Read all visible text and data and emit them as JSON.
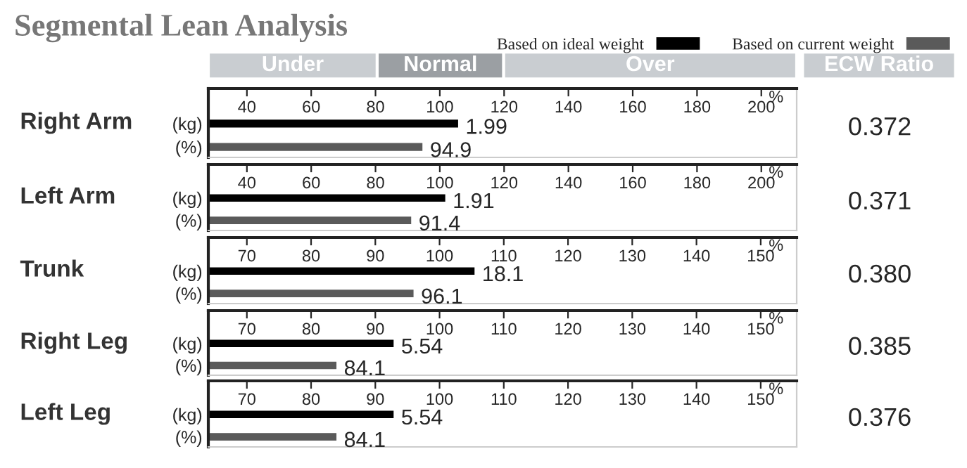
{
  "chart_data": [
    {
      "type": "bar",
      "orientation": "horizontal",
      "title": "Segmental Lean Analysis",
      "ylabel": "Right Arm",
      "xlabel": "%",
      "categories": [
        "(kg)",
        "(%)"
      ],
      "legend": "top right",
      "series": [
        {
          "name": "Based on ideal weight",
          "color": "#000000",
          "values": [
            106,
            null
          ]
        },
        {
          "name": "Based on current weight",
          "color": "#5a5a5a",
          "values": [
            null,
            94.9
          ],
          "value_labels": [
            null,
            "94.9"
          ]
        }
      ],
      "xlim": [
        28,
        211
      ],
      "xticks": [
        40,
        60,
        80,
        100,
        120,
        140,
        160,
        180,
        200
      ],
      "annotations": [
        "Under",
        "Normal",
        "Over",
        "ECW Ratio",
        {
          "text": "1.99",
          "x": 106,
          "y": "(kg)"
        },
        "0.372"
      ]
    },
    {
      "type": "bar",
      "orientation": "horizontal",
      "ylabel": "Left Arm",
      "xlabel": "%",
      "categories": [
        "(kg)",
        "(%)"
      ],
      "series": [
        {
          "color": "#000000",
          "values": [
            102,
            null
          ]
        },
        {
          "color": "#5a5a5a",
          "values": [
            null,
            91.4
          ],
          "value_labels": [
            null,
            "91.4"
          ]
        }
      ],
      "xlim": [
        28,
        211
      ],
      "xticks": [
        40,
        60,
        80,
        100,
        120,
        140,
        160,
        180,
        200
      ],
      "annotations": [
        {
          "text": "1.91",
          "x": 102,
          "y": "(kg)"
        },
        "0.371"
      ]
    },
    {
      "type": "bar",
      "orientation": "horizontal",
      "ylabel": "Trunk",
      "xlabel": "%",
      "categories": [
        "(kg)",
        "(%)"
      ],
      "series": [
        {
          "color": "#000000",
          "values": [
            105.6,
            null
          ]
        },
        {
          "color": "#5a5a5a",
          "values": [
            null,
            96.1
          ],
          "value_labels": [
            null,
            "96.1"
          ]
        }
      ],
      "xlim": [
        64,
        155.6
      ],
      "xticks": [
        70,
        80,
        90,
        100,
        110,
        120,
        130,
        140,
        150
      ],
      "annotations": [
        {
          "text": "18.1",
          "x": 105.6,
          "y": "(kg)"
        },
        "0.380"
      ]
    },
    {
      "type": "bar",
      "orientation": "horizontal",
      "ylabel": "Right Leg",
      "xlabel": "%",
      "categories": [
        "(kg)",
        "(%)"
      ],
      "series": [
        {
          "color": "#000000",
          "values": [
            93,
            null
          ]
        },
        {
          "color": "#5a5a5a",
          "values": [
            null,
            84.1
          ],
          "value_labels": [
            null,
            "84.1"
          ]
        }
      ],
      "xlim": [
        64,
        155.6
      ],
      "xticks": [
        70,
        80,
        90,
        100,
        110,
        120,
        130,
        140,
        150
      ],
      "annotations": [
        {
          "text": "5.54",
          "x": 93,
          "y": "(kg)"
        },
        "0.385"
      ]
    },
    {
      "type": "bar",
      "orientation": "horizontal",
      "ylabel": "Left Leg",
      "xlabel": "%",
      "categories": [
        "(kg)",
        "(%)"
      ],
      "series": [
        {
          "color": "#000000",
          "values": [
            93,
            null
          ]
        },
        {
          "color": "#5a5a5a",
          "values": [
            null,
            84.1
          ],
          "value_labels": [
            null,
            "84.1"
          ]
        }
      ],
      "xlim": [
        64,
        155.6
      ],
      "xticks": [
        70,
        80,
        90,
        100,
        110,
        120,
        130,
        140,
        150
      ],
      "annotations": [
        {
          "text": "5.54",
          "x": 93,
          "y": "(kg)"
        },
        "0.376"
      ]
    }
  ]
}
